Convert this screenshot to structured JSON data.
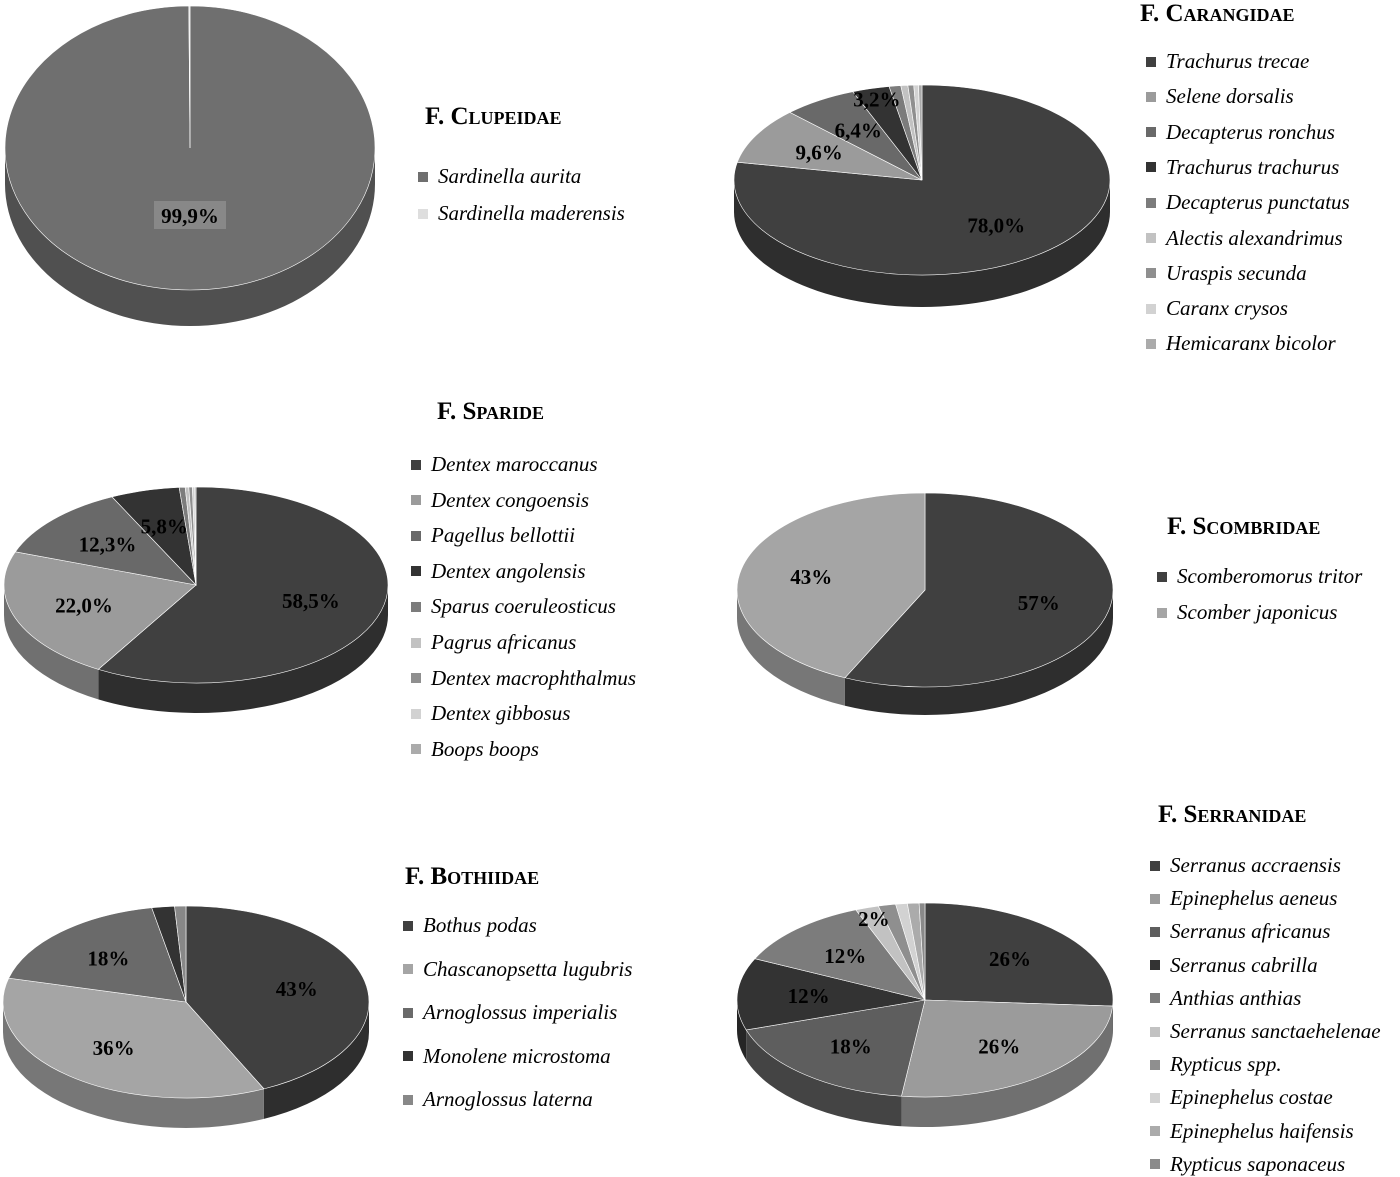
{
  "chart_data": [
    {
      "type": "pie",
      "title": "F. Clupeidae",
      "categories": [
        "Sardinella aurita",
        "Sardinella maderensis"
      ],
      "values": [
        99.9,
        0.1
      ],
      "labels": [
        "99,9%",
        ""
      ],
      "colors": [
        "#6f6f6f",
        "#dedede"
      ]
    },
    {
      "type": "pie",
      "title": "F. Carangidae",
      "categories": [
        "Trachurus trecae",
        "Selene dorsalis",
        "Decapterus ronchus",
        "Trachurus trachurus",
        "Decapterus punctatus",
        "Alectis alexandrimus",
        "Uraspis secunda",
        "Caranx crysos",
        "Hemicaranx bicolor"
      ],
      "values": [
        78.0,
        9.6,
        6.4,
        3.2,
        1.0,
        0.6,
        0.5,
        0.4,
        0.3
      ],
      "labels": [
        "78,0%",
        "9,6%",
        "6,4%",
        "3,2%",
        "",
        "",
        "",
        "",
        ""
      ],
      "colors": [
        "#404040",
        "#9b9b9b",
        "#696969",
        "#333333",
        "#7c7c7c",
        "#c2c2c2",
        "#8f8f8f",
        "#d2d2d2",
        "#ababab"
      ]
    },
    {
      "type": "pie",
      "title": "F. Sparide",
      "categories": [
        "Dentex maroccanus",
        "Dentex congoensis",
        "Pagellus bellottii",
        "Dentex angolensis",
        "Sparus coeruleosticus",
        "Pagrus africanus",
        "Dentex macrophthalmus",
        "Dentex gibbosus",
        "Boops boops"
      ],
      "values": [
        58.5,
        22.0,
        12.3,
        5.8,
        0.5,
        0.3,
        0.3,
        0.2,
        0.1
      ],
      "labels": [
        "58,5%",
        "22,0%",
        "12,3%",
        "5,8%",
        "",
        "",
        "",
        "",
        ""
      ],
      "colors": [
        "#404040",
        "#9b9b9b",
        "#696969",
        "#333333",
        "#7c7c7c",
        "#c2c2c2",
        "#8f8f8f",
        "#d2d2d2",
        "#ababab"
      ]
    },
    {
      "type": "pie",
      "title": "F. Scombridae",
      "categories": [
        "Scomberomorus tritor",
        "Scomber japonicus"
      ],
      "values": [
        57,
        43
      ],
      "labels": [
        "57%",
        "43%"
      ],
      "colors": [
        "#404040",
        "#a5a5a5"
      ]
    },
    {
      "type": "pie",
      "title": "F. Bothiidae",
      "categories": [
        "Bothus podas",
        "Chascanopsetta lugubris",
        "Arnoglossus imperialis",
        "Monolene microstoma",
        "Arnoglossus laterna"
      ],
      "values": [
        43,
        36,
        18,
        2,
        1
      ],
      "labels": [
        "43%",
        "36%",
        "18%",
        "",
        ""
      ],
      "colors": [
        "#404040",
        "#a5a5a5",
        "#6a6a6a",
        "#333333",
        "#888888"
      ]
    },
    {
      "type": "pie",
      "title": "F. Serranidae",
      "categories": [
        "Serranus accraensis",
        "Epinephelus aeneus",
        "Serranus africanus",
        "Serranus cabrilla",
        "Anthias anthias",
        "Serranus sanctaehelenae",
        "Rypticus spp.",
        "Epinephelus costae",
        "Epinephelus haifensis",
        "Rypticus saponaceus"
      ],
      "values": [
        26,
        26,
        18,
        12,
        12,
        2,
        1.5,
        1,
        1,
        0.5
      ],
      "labels": [
        "26%",
        "26%",
        "18%",
        "12%",
        "12%",
        "2%",
        "",
        "",
        "",
        ""
      ],
      "colors": [
        "#404040",
        "#9b9b9b",
        "#5e5e5e",
        "#333333",
        "#7c7c7c",
        "#c2c2c2",
        "#8f8f8f",
        "#d2d2d2",
        "#ababab",
        "#8a8a8a"
      ]
    }
  ]
}
